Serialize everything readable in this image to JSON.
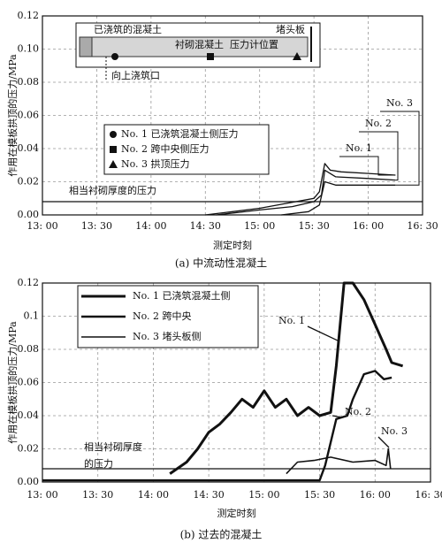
{
  "chart_data": [
    {
      "type": "line",
      "caption": "(a) 中流动性混凝土",
      "ylabel": "作用在模板拱顶的压力/MPa",
      "xlabel": "测定时刻",
      "xlim": [
        13,
        16.5
      ],
      "xticks": [
        {
          "value": 13,
          "label": "13: 00"
        },
        {
          "value": 13.5,
          "label": "13: 30"
        },
        {
          "value": 14,
          "label": "14: 00"
        },
        {
          "value": 14.5,
          "label": "14: 30"
        },
        {
          "value": 15,
          "label": "15: 00"
        },
        {
          "value": 15.5,
          "label": "15: 30"
        },
        {
          "value": 16,
          "label": "16: 00"
        },
        {
          "value": 16.5,
          "label": "16: 30"
        }
      ],
      "ylim": [
        0,
        0.12
      ],
      "yticks": [
        {
          "value": 0,
          "label": "0.00"
        },
        0.02,
        0.04,
        0.06,
        0.08,
        {
          "value": 0.1,
          "label": "0.10"
        },
        0.12
      ],
      "grid": true,
      "series": [
        {
          "name": "No. 1 已浇筑混凝土侧压力",
          "color": "#111111",
          "marker": "circle",
          "x": [
            14.5,
            14.75,
            15.0,
            15.25,
            15.5,
            15.55,
            15.6,
            15.65,
            15.75,
            16.0,
            16.25
          ],
          "values": [
            0.0,
            0.002,
            0.004,
            0.007,
            0.01,
            0.014,
            0.031,
            0.027,
            0.026,
            0.025,
            0.024
          ]
        },
        {
          "name": "No. 2 跨中央侧压力",
          "color": "#111111",
          "marker": "square",
          "x": [
            14.6,
            15.0,
            15.3,
            15.5,
            15.57,
            15.6,
            15.7,
            16.0,
            16.25
          ],
          "values": [
            0.0,
            0.003,
            0.005,
            0.008,
            0.012,
            0.027,
            0.023,
            0.022,
            0.021
          ]
        },
        {
          "name": "No. 3 拱顶压力",
          "color": "#111111",
          "marker": "triangle",
          "x": [
            15.2,
            15.45,
            15.55,
            15.6,
            15.7,
            16.0,
            16.25
          ],
          "values": [
            0.0,
            0.002,
            0.006,
            0.02,
            0.018,
            0.018,
            0.018
          ]
        }
      ],
      "annotations": [
        "No. 1",
        "No. 2",
        "No. 3"
      ],
      "hline": {
        "value": 0.008,
        "label": "相当衬砌厚度的压力"
      },
      "inset": [
        "已浇筑的混凝土",
        "衬砌混凝土",
        "压力计位置",
        "堵头板",
        "向上浇筑口"
      ]
    },
    {
      "type": "line",
      "caption": "(b) 过去的混凝土",
      "ylabel": "作用在模板拱顶的压力/MPa",
      "xlabel": "测定时刻",
      "xlim": [
        13,
        16.5
      ],
      "xticks": [
        {
          "value": 13,
          "label": "13: 00"
        },
        {
          "value": 13.5,
          "label": "13: 30"
        },
        {
          "value": 14,
          "label": "14: 00"
        },
        {
          "value": 14.5,
          "label": "14: 30"
        },
        {
          "value": 15,
          "label": "15: 00"
        },
        {
          "value": 15.5,
          "label": "15: 30"
        },
        {
          "value": 16,
          "label": "16: 00"
        },
        {
          "value": 16.5,
          "label": "16: 30"
        }
      ],
      "ylim": [
        0,
        0.12
      ],
      "yticks": [
        {
          "value": 0,
          "label": "0.00"
        },
        0.02,
        0.04,
        0.06,
        0.08,
        0.1,
        0.12
      ],
      "grid": true,
      "series": [
        {
          "name": "No. 1 已浇筑混凝土侧",
          "color": "#111111",
          "x": [
            14.15,
            14.3,
            14.4,
            14.5,
            14.6,
            14.7,
            14.8,
            14.9,
            15.0,
            15.1,
            15.2,
            15.3,
            15.4,
            15.5,
            15.6,
            15.65,
            15.72,
            15.8,
            15.9,
            16.0,
            16.1,
            16.15,
            16.25
          ],
          "values": [
            0.005,
            0.012,
            0.02,
            0.03,
            0.035,
            0.042,
            0.05,
            0.045,
            0.055,
            0.045,
            0.05,
            0.04,
            0.045,
            0.04,
            0.042,
            0.07,
            0.12,
            0.12,
            0.11,
            0.095,
            0.08,
            0.072,
            0.07
          ]
        },
        {
          "name": "No. 2 跨中央",
          "color": "#111111",
          "x": [
            13.0,
            15.5,
            15.55,
            15.65,
            15.75,
            15.8,
            15.9,
            16.0,
            16.08,
            16.15
          ],
          "values": [
            0.001,
            0.001,
            0.01,
            0.038,
            0.04,
            0.05,
            0.065,
            0.067,
            0.062,
            0.063
          ]
        },
        {
          "name": "No. 3 堵头板侧",
          "color": "#111111",
          "x": [
            15.2,
            15.3,
            15.45,
            15.6,
            15.8,
            16.0,
            16.1,
            16.12,
            16.14
          ],
          "values": [
            0.005,
            0.012,
            0.013,
            0.015,
            0.012,
            0.013,
            0.01,
            0.02,
            0.008
          ]
        }
      ],
      "annotations": [
        "No. 1",
        "No. 2",
        "No. 3"
      ],
      "hline": {
        "value": 0.008,
        "label": [
          "相当衬砌厚度",
          "的压力"
        ]
      }
    }
  ]
}
